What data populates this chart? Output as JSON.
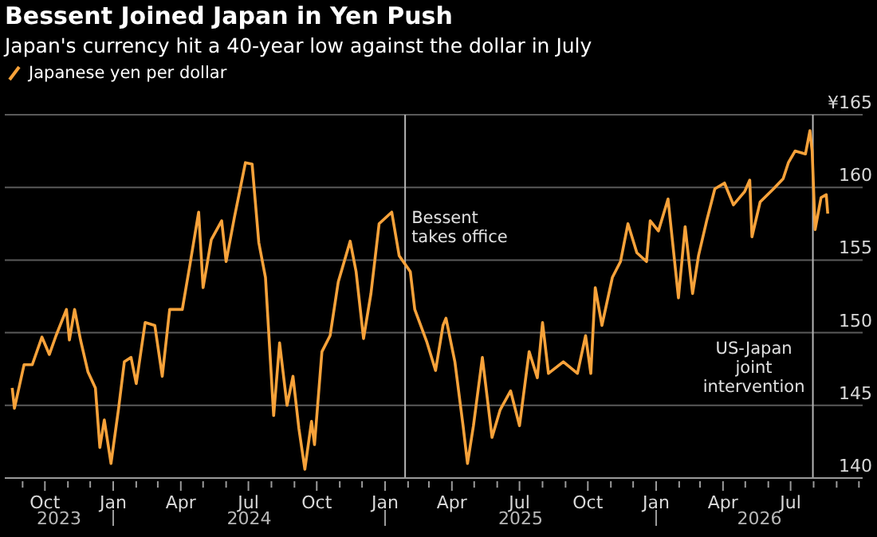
{
  "chart_data": {
    "type": "line",
    "title": "Bessent Joined Japan in Yen Push",
    "subtitle": "Japan's currency hit a 40-year low against the dollar in July",
    "x": [
      "2023-08-18",
      "2023-08-21",
      "2023-09-03",
      "2023-09-14",
      "2023-09-27",
      "2023-10-07",
      "2023-10-16",
      "2023-10-30",
      "2023-11-03",
      "2023-11-10",
      "2023-11-18",
      "2023-11-28",
      "2023-12-08",
      "2023-12-14",
      "2023-12-20",
      "2023-12-29",
      "2024-01-08",
      "2024-01-16",
      "2024-01-25",
      "2024-02-01",
      "2024-02-13",
      "2024-02-26",
      "2024-03-07",
      "2024-03-17",
      "2024-04-03",
      "2024-04-13",
      "2024-04-25",
      "2024-05-01",
      "2024-05-12",
      "2024-05-26",
      "2024-06-01",
      "2024-06-12",
      "2024-06-27",
      "2024-07-06",
      "2024-07-15",
      "2024-07-24",
      "2024-08-04",
      "2024-08-12",
      "2024-08-22",
      "2024-08-30",
      "2024-09-07",
      "2024-09-15",
      "2024-09-24",
      "2024-09-28",
      "2024-10-08",
      "2024-10-19",
      "2024-10-30",
      "2024-11-15",
      "2024-11-23",
      "2024-12-03",
      "2024-12-13",
      "2024-12-24",
      "2025-01-10",
      "2025-01-20",
      "2025-02-04",
      "2025-02-10",
      "2025-02-26",
      "2025-03-10",
      "2025-03-20",
      "2025-03-24",
      "2025-04-05",
      "2025-04-16",
      "2025-04-22",
      "2025-04-30",
      "2025-05-12",
      "2025-05-25",
      "2025-06-05",
      "2025-06-19",
      "2025-07-01",
      "2025-07-14",
      "2025-07-25",
      "2025-08-01",
      "2025-08-09",
      "2025-08-29",
      "2025-09-17",
      "2025-09-28",
      "2025-10-05",
      "2025-10-11",
      "2025-10-20",
      "2025-11-03",
      "2025-11-14",
      "2025-11-24",
      "2025-12-06",
      "2025-12-19",
      "2025-12-24",
      "2026-01-04",
      "2026-01-17",
      "2026-01-31",
      "2026-02-09",
      "2026-02-19",
      "2026-02-27",
      "2026-03-10",
      "2026-03-21",
      "2026-04-03",
      "2026-04-15",
      "2026-04-30",
      "2026-05-07",
      "2026-05-10",
      "2026-05-21",
      "2026-06-08",
      "2026-06-21",
      "2026-06-28",
      "2026-07-07",
      "2026-07-21",
      "2026-07-27",
      "2026-07-30",
      "2026-08-03",
      "2026-08-11",
      "2026-08-18",
      "2026-08-20"
    ],
    "series": [
      {
        "name": "Japanese yen per dollar",
        "color": "#f7a23a",
        "values": [
          146.2,
          144.8,
          147.8,
          147.8,
          149.7,
          148.5,
          149.8,
          151.6,
          149.5,
          151.6,
          149.5,
          147.3,
          146.2,
          142.1,
          144.0,
          141.0,
          144.7,
          148.0,
          148.3,
          146.5,
          150.7,
          150.5,
          147.0,
          151.6,
          151.6,
          154.6,
          158.3,
          153.1,
          156.4,
          157.7,
          154.9,
          157.9,
          161.7,
          161.6,
          156.2,
          153.8,
          144.3,
          149.3,
          145.0,
          147.0,
          143.4,
          140.6,
          143.9,
          142.3,
          148.7,
          149.8,
          153.5,
          156.3,
          154.2,
          149.6,
          152.7,
          157.5,
          158.3,
          155.3,
          154.2,
          151.6,
          149.4,
          147.4,
          150.5,
          151.0,
          148.0,
          143.6,
          141.0,
          143.6,
          148.3,
          142.8,
          144.7,
          146.0,
          143.6,
          148.7,
          146.9,
          150.7,
          147.2,
          148.0,
          147.2,
          149.8,
          147.2,
          153.1,
          150.5,
          153.8,
          154.9,
          157.5,
          155.5,
          154.9,
          157.7,
          157.0,
          159.2,
          152.4,
          157.3,
          152.7,
          155.3,
          157.7,
          159.9,
          160.3,
          158.8,
          159.7,
          160.5,
          156.6,
          159.0,
          159.9,
          160.6,
          161.7,
          162.5,
          162.3,
          163.9,
          162.5,
          157.1,
          159.3,
          159.5,
          158.2
        ]
      }
    ],
    "xlim": [
      "2023-08-08",
      "2026-10-06"
    ],
    "xticks": [
      {
        "value": "2023-09",
        "label": null
      },
      {
        "value": "2023-10",
        "label": "Oct"
      },
      {
        "value": "2023-11",
        "label": null
      },
      {
        "value": "2023-12",
        "label": null
      },
      {
        "value": "2024-01",
        "label": "Jan"
      },
      {
        "value": "2024-02",
        "label": null
      },
      {
        "value": "2024-03",
        "label": null
      },
      {
        "value": "2024-04",
        "label": "Apr"
      },
      {
        "value": "2024-05",
        "label": null
      },
      {
        "value": "2024-06",
        "label": null
      },
      {
        "value": "2024-07",
        "label": "Jul"
      },
      {
        "value": "2024-08",
        "label": null
      },
      {
        "value": "2024-09",
        "label": null
      },
      {
        "value": "2024-10",
        "label": "Oct"
      },
      {
        "value": "2024-11",
        "label": null
      },
      {
        "value": "2024-12",
        "label": null
      },
      {
        "value": "2025-01",
        "label": "Jan"
      },
      {
        "value": "2025-02",
        "label": null
      },
      {
        "value": "2025-03",
        "label": null
      },
      {
        "value": "2025-04",
        "label": "Apr"
      },
      {
        "value": "2025-05",
        "label": null
      },
      {
        "value": "2025-06",
        "label": null
      },
      {
        "value": "2025-07",
        "label": "Jul"
      },
      {
        "value": "2025-08",
        "label": null
      },
      {
        "value": "2025-09",
        "label": null
      },
      {
        "value": "2025-10",
        "label": "Oct"
      },
      {
        "value": "2025-11",
        "label": null
      },
      {
        "value": "2025-12",
        "label": null
      },
      {
        "value": "2026-01",
        "label": "Jan"
      },
      {
        "value": "2026-02",
        "label": null
      },
      {
        "value": "2026-03",
        "label": null
      },
      {
        "value": "2026-04",
        "label": "Apr"
      },
      {
        "value": "2026-05",
        "label": null
      },
      {
        "value": "2026-06",
        "label": null
      },
      {
        "value": "2026-07",
        "label": "Jul"
      },
      {
        "value": "2026-08",
        "label": null
      },
      {
        "value": "2026-09",
        "label": null
      },
      {
        "value": "2026-10",
        "label": null
      }
    ],
    "ylim": [
      140,
      165
    ],
    "yticks": [
      140,
      145,
      150,
      155,
      160,
      {
        "value": 165,
        "label": "¥165"
      }
    ],
    "grid": "y",
    "legend": "top left",
    "ref_lines": [
      {
        "axis": "x",
        "value": "2025-01-28",
        "label": "Bessent\ntakes office",
        "color": "#b4b4b4"
      },
      {
        "axis": "x",
        "value": "2026-07-31",
        "label": "US-Japan\njoint\nintervention",
        "color": "#b4b4b4"
      }
    ],
    "annotations": [
      "2023",
      "2024",
      "2025",
      "2026"
    ]
  }
}
